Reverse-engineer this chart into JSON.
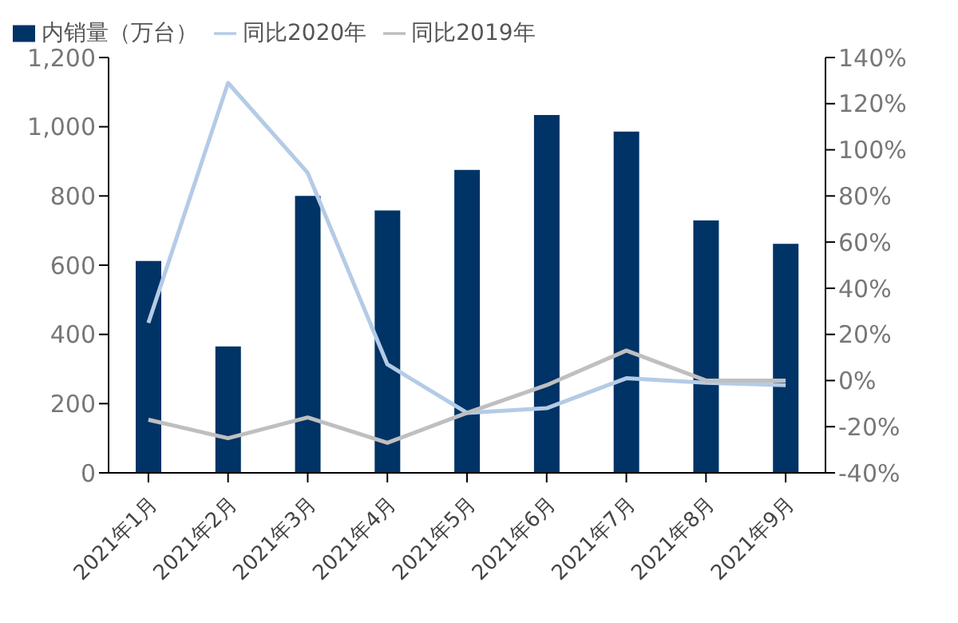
{
  "chart_data": {
    "type": "bar",
    "categories": [
      "2021年1月",
      "2021年2月",
      "2021年3月",
      "2021年4月",
      "2021年5月",
      "2021年6月",
      "2021年7月",
      "2021年8月",
      "2021年9月"
    ],
    "series": [
      {
        "name": "内销量（万台）",
        "color": "#003366",
        "values": [
          612,
          365,
          800,
          758,
          875,
          1034,
          986,
          729,
          662
        ]
      },
      {
        "name": "同比2020年",
        "type": "line",
        "axis": "y2",
        "color": "#b4cbe6",
        "values": [
          25,
          129,
          90,
          7,
          -14,
          -12,
          1,
          -1,
          -2
        ]
      },
      {
        "name": "同比2019年",
        "type": "line",
        "axis": "y2",
        "color": "#bfbfbf",
        "values": [
          -17,
          -25,
          -16,
          -27,
          -14,
          -2,
          13,
          0,
          0
        ]
      }
    ],
    "ylim": [
      0,
      1200
    ],
    "yticks": [
      0,
      {
        "value": 200,
        "label": "200"
      },
      {
        "value": 400,
        "label": "400"
      },
      {
        "value": 600,
        "label": "600"
      },
      {
        "value": 800,
        "label": "800"
      },
      {
        "value": 1000,
        "label": "1,000"
      },
      {
        "value": 1200,
        "label": "1,200"
      }
    ],
    "y2lim": [
      -40,
      140
    ],
    "y2ticks": [
      {
        "value": -40,
        "label": "-40%"
      },
      {
        "value": -20,
        "label": "-20%"
      },
      {
        "value": 0,
        "label": "0%"
      },
      {
        "value": 20,
        "label": "20%"
      },
      {
        "value": 40,
        "label": "40%"
      },
      {
        "value": 60,
        "label": "60%"
      },
      {
        "value": 80,
        "label": "80%"
      },
      {
        "value": 100,
        "label": "100%"
      },
      {
        "value": 120,
        "label": "120%"
      },
      {
        "value": 140,
        "label": "140%"
      }
    ],
    "legend": "top",
    "marker": "none"
  }
}
